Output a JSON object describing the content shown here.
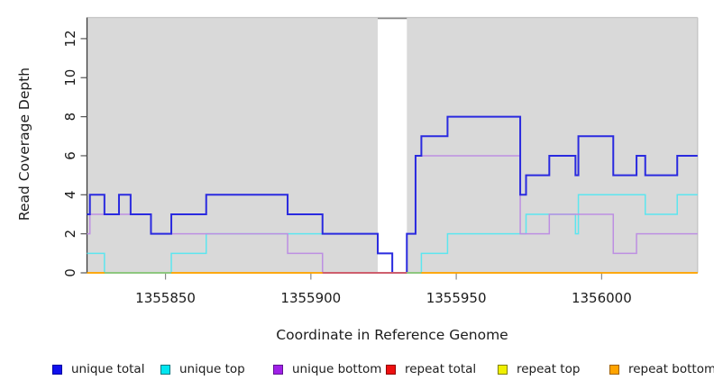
{
  "figure": {
    "description": "Read coverage depth step plot across a reference genome region"
  },
  "y_axis": {
    "label": "Read Coverage Depth"
  },
  "x_axis": {
    "label": "Coordinate in Reference Genome"
  },
  "legend": {
    "items": [
      {
        "label": "unique total",
        "color": "#1010EE",
        "border": "#0000A0"
      },
      {
        "label": "unique top",
        "color": "#00E6F0",
        "border": "#007780"
      },
      {
        "label": "unique bottom",
        "color": "#A020E8",
        "border": "#5F1490"
      },
      {
        "label": "repeat total",
        "color": "#EE1010",
        "border": "#900000"
      },
      {
        "label": "repeat top",
        "color": "#F0F000",
        "border": "#808000"
      },
      {
        "label": "repeat bottom",
        "color": "#FFA400",
        "border": "#A06000"
      }
    ]
  },
  "chart_data": {
    "type": "line",
    "step": true,
    "title": "",
    "xlabel": "Coordinate in Reference Genome",
    "ylabel": "Read Coverage Depth",
    "xlim": [
      1355823,
      1356033
    ],
    "ylim": [
      0,
      13.08
    ],
    "x_ticks": [
      1355850,
      1355900,
      1355950,
      1356000
    ],
    "y_ticks": [
      0,
      2,
      4,
      6,
      8,
      10,
      12
    ],
    "grid": false,
    "legend_position": "bottom",
    "plot_bg": "#d9d9d9",
    "gap_region": {
      "from": 1355923,
      "to": 1355933
    },
    "series": [
      {
        "name": "unique top",
        "color": "#5CE6EF",
        "width": 1.5,
        "points": [
          [
            1355823,
            1
          ],
          [
            1355829,
            0
          ],
          [
            1355852,
            1
          ],
          [
            1355864,
            2
          ],
          [
            1355923,
            1
          ],
          [
            1355928,
            0
          ],
          [
            1355938,
            1
          ],
          [
            1355947,
            2
          ],
          [
            1355974,
            3
          ],
          [
            1355991,
            2
          ],
          [
            1355992,
            4
          ],
          [
            1356015,
            3
          ],
          [
            1356026,
            4
          ],
          [
            1356033,
            4
          ]
        ]
      },
      {
        "name": "unique bottom",
        "color": "#BD8FE2",
        "width": 1.5,
        "points": [
          [
            1355823,
            2
          ],
          [
            1355824,
            3
          ],
          [
            1355845,
            2
          ],
          [
            1355892,
            1
          ],
          [
            1355904,
            0
          ],
          [
            1355933,
            2
          ],
          [
            1355936,
            6
          ],
          [
            1355972,
            2
          ],
          [
            1355982,
            3
          ],
          [
            1356004,
            1
          ],
          [
            1356012,
            2
          ],
          [
            1356033,
            2
          ]
        ]
      },
      {
        "name": "unique total",
        "color": "#2A2ADF",
        "width": 2,
        "points": [
          [
            1355823,
            3
          ],
          [
            1355824,
            4
          ],
          [
            1355829,
            3
          ],
          [
            1355834,
            4
          ],
          [
            1355838,
            3
          ],
          [
            1355845,
            2
          ],
          [
            1355852,
            3
          ],
          [
            1355864,
            4
          ],
          [
            1355892,
            3
          ],
          [
            1355904,
            2
          ],
          [
            1355923,
            1
          ],
          [
            1355928,
            0
          ],
          [
            1355933,
            2
          ],
          [
            1355936,
            6
          ],
          [
            1355938,
            7
          ],
          [
            1355947,
            8
          ],
          [
            1355972,
            4
          ],
          [
            1355974,
            5
          ],
          [
            1355982,
            6
          ],
          [
            1355991,
            5
          ],
          [
            1355992,
            7
          ],
          [
            1356004,
            5
          ],
          [
            1356012,
            6
          ],
          [
            1356015,
            5
          ],
          [
            1356026,
            6
          ],
          [
            1356033,
            6
          ]
        ]
      },
      {
        "name": "repeat total",
        "color": "#DD2222",
        "width": 1.2,
        "points": [
          [
            1355823,
            0
          ],
          [
            1356033,
            0
          ]
        ]
      },
      {
        "name": "repeat top",
        "color": "#EEEE00",
        "width": 1.2,
        "points": [
          [
            1355823,
            0
          ],
          [
            1356033,
            0
          ]
        ]
      },
      {
        "name": "repeat bottom",
        "color": "#FFA500",
        "width": 1.7,
        "points": [
          [
            1355823,
            0
          ],
          [
            1356033,
            0
          ]
        ]
      }
    ],
    "baseline_overlap_tints": [
      {
        "from": 1355829,
        "to": 1355852,
        "color": "#7FCB8C"
      },
      {
        "from": 1355904,
        "to": 1355933,
        "color": "#C85578"
      },
      {
        "from": 1355933,
        "to": 1355938,
        "color": "#7FCB8C"
      }
    ]
  }
}
